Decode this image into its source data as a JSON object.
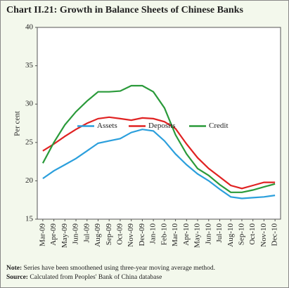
{
  "chart_data": {
    "type": "line",
    "title": "Chart II.21: Growth in Balance Sheets of Chinese Banks",
    "y_label": "Per cent",
    "categories": [
      "Mar-09",
      "Apr-09",
      "May-09",
      "Jun-09",
      "Jul-09",
      "Aug-09",
      "Sep-09",
      "Oct-09",
      "Nov-09",
      "Dec-09",
      "Jan-10",
      "Feb-10",
      "Mar-10",
      "Apr-10",
      "May-10",
      "Jun-10",
      "Jul-10",
      "Aug-10",
      "Sep-10",
      "Oct-10",
      "Nov-10",
      "Dec-10"
    ],
    "series": [
      {
        "name": "Assets",
        "color": "#2b9fdc",
        "values": [
          20.3,
          21.3,
          22.1,
          22.9,
          23.9,
          24.9,
          25.2,
          25.5,
          26.3,
          26.7,
          26.5,
          25.2,
          23.5,
          22.1,
          20.9,
          20.0,
          18.9,
          17.9,
          17.7,
          17.8,
          17.9,
          18.1
        ]
      },
      {
        "name": "Deposits",
        "color": "#e02222",
        "values": [
          23.9,
          24.8,
          25.8,
          26.7,
          27.5,
          28.1,
          28.3,
          28.1,
          27.9,
          28.2,
          28.1,
          27.7,
          26.8,
          24.8,
          23.0,
          21.6,
          20.5,
          19.4,
          19.0,
          19.4,
          19.8,
          19.8
        ]
      },
      {
        "name": "Credit",
        "color": "#2a9a3a",
        "values": [
          22.3,
          25.0,
          27.3,
          29.0,
          30.4,
          31.6,
          31.6,
          31.7,
          32.4,
          32.4,
          31.6,
          29.5,
          26.0,
          23.5,
          21.6,
          20.7,
          19.5,
          18.5,
          18.5,
          18.8,
          19.2,
          19.6
        ]
      }
    ],
    "ylim": [
      15,
      40
    ],
    "yticks": [
      15,
      20,
      25,
      30,
      35,
      40
    ],
    "grid": false,
    "legend": "center"
  },
  "footnotes": [
    {
      "label": "Note:",
      "text": "Series have been smoothened using three-year moving average method."
    },
    {
      "label": "Source:",
      "text": "Calculated from Peoples' Bank of China database"
    }
  ]
}
